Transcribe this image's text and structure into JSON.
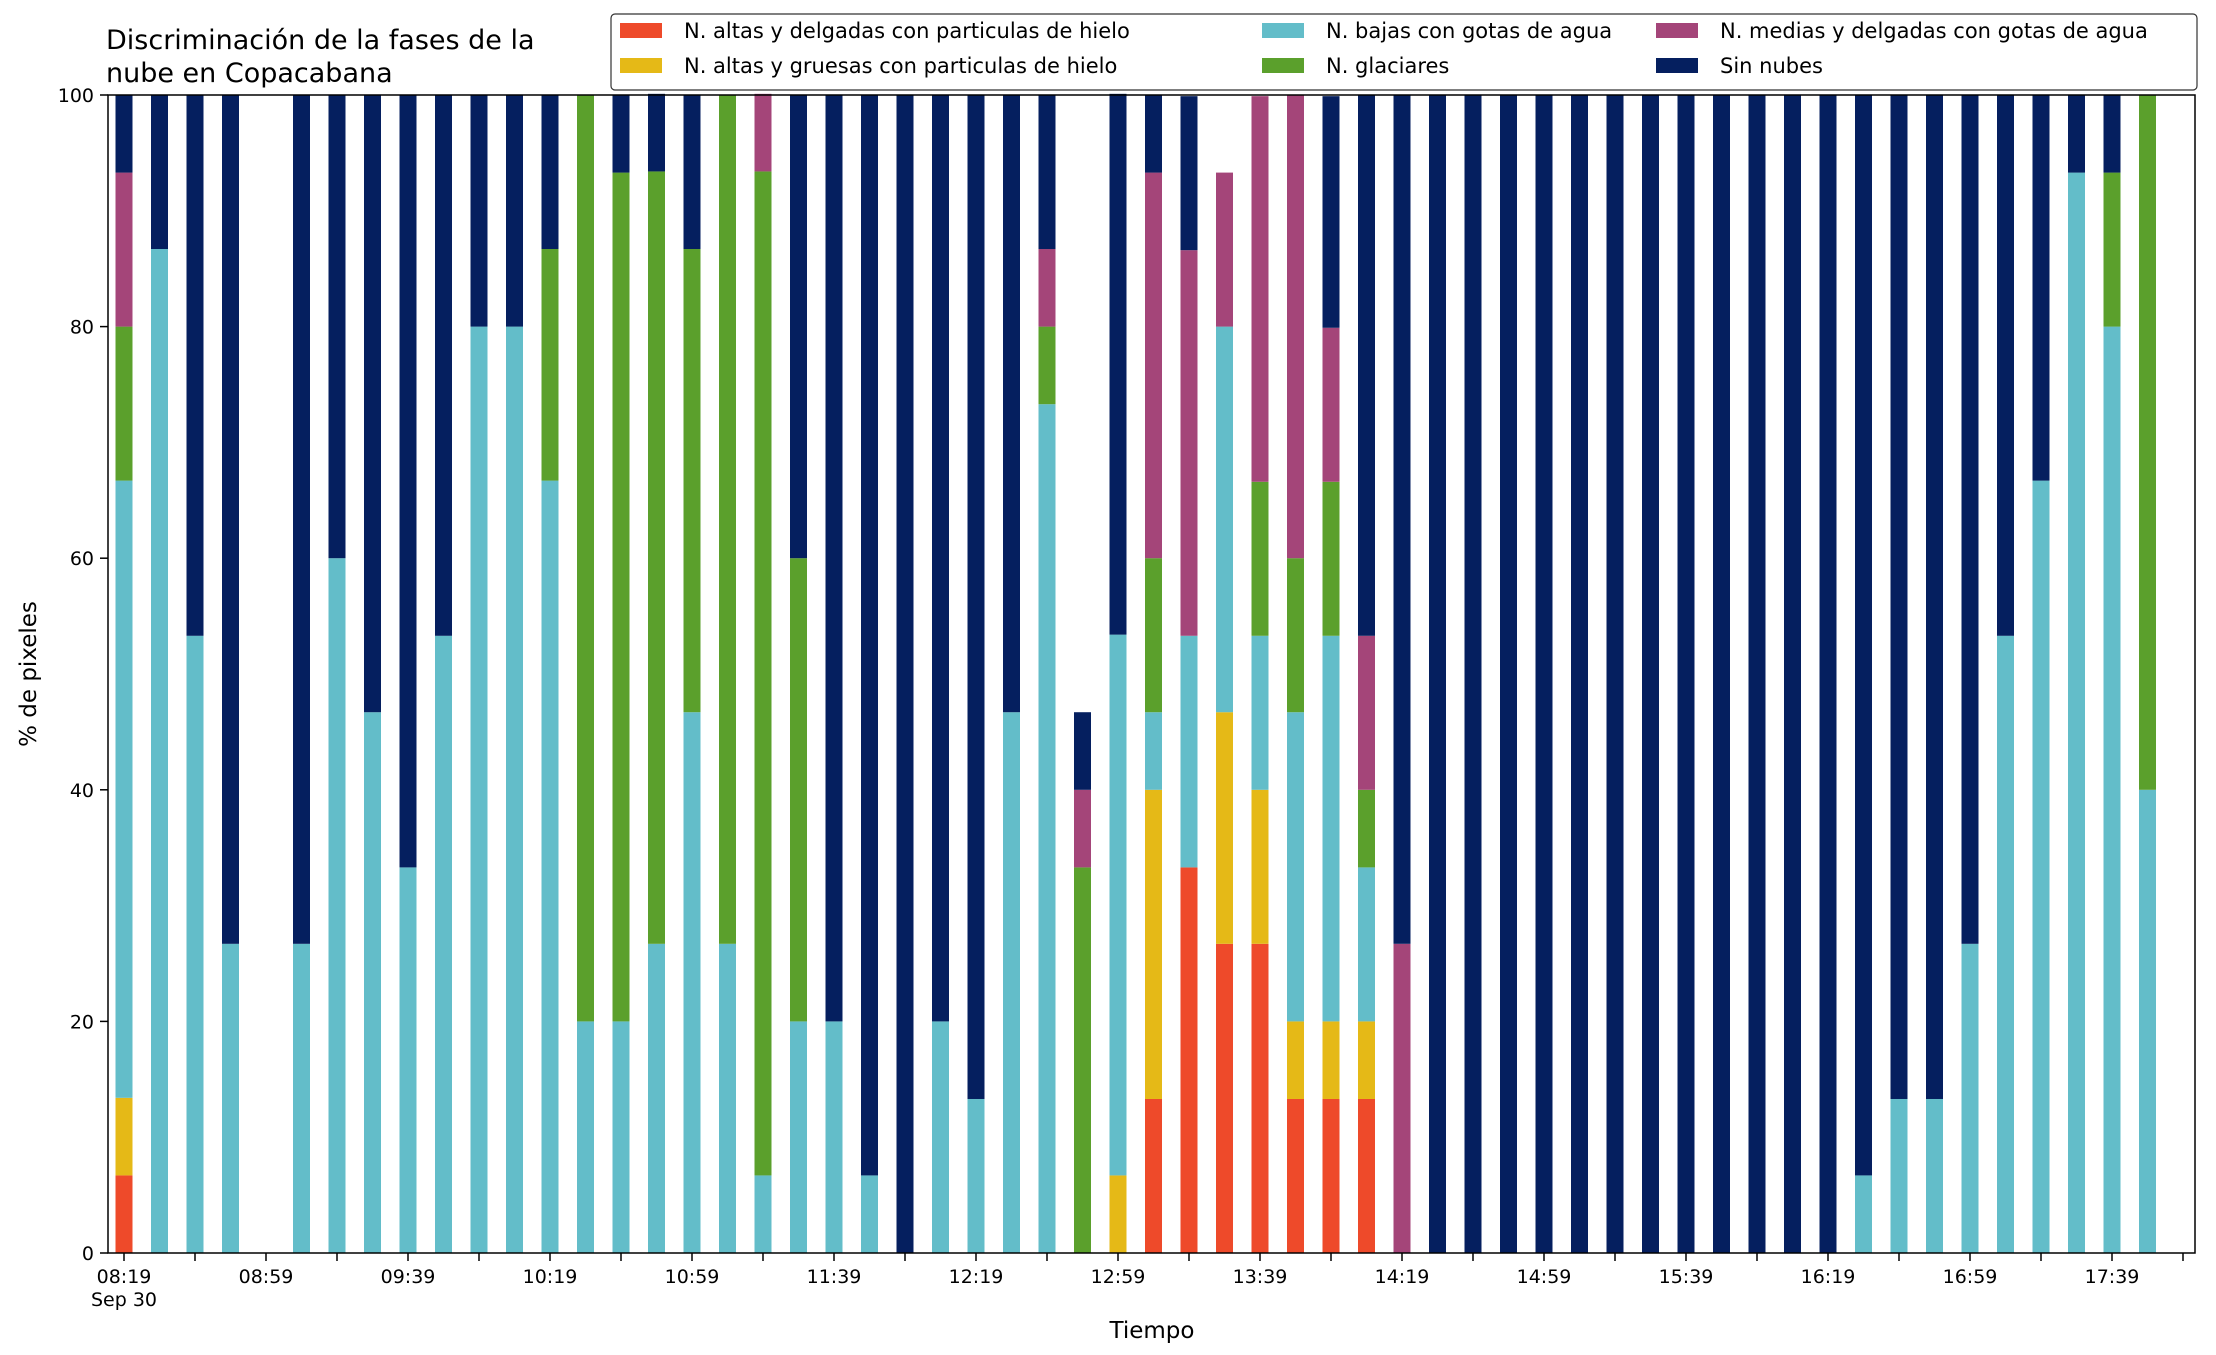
{
  "chart_data": {
    "type": "bar",
    "stacked": true,
    "title": "Discriminación de la fases de la\nnube en Copacabana",
    "xlabel": "Tiempo",
    "ylabel": "% de pixeles",
    "ylim": [
      0,
      100
    ],
    "yticks": [
      "0",
      "20",
      "40",
      "60",
      "80",
      "100"
    ],
    "grid": false,
    "legend_position": "top-right",
    "x_start": "08:19",
    "x_interval_minutes": 10,
    "x_tick_labels": [
      "08:19",
      "08:59",
      "09:39",
      "10:19",
      "10:59",
      "11:39",
      "12:19",
      "12:59",
      "13:39",
      "14:19",
      "14:59",
      "15:39",
      "16:19",
      "16:59",
      "17:39"
    ],
    "x_date_label": "Sep 30",
    "series": [
      {
        "name": "N. altas y delgadas con particulas de hielo",
        "color": "#ee4a2a",
        "values": [
          6.7,
          0,
          0,
          0,
          0,
          0,
          0,
          0,
          0,
          0,
          0,
          0,
          0,
          0,
          0,
          0,
          0,
          0,
          0,
          0,
          0,
          0,
          0,
          0,
          0,
          0,
          0,
          0,
          0,
          13.3,
          33.3,
          26.7,
          26.7,
          13.3,
          13.3,
          13.3,
          0,
          0,
          0,
          0,
          0,
          0,
          0,
          0,
          0,
          0,
          0,
          0,
          0,
          0,
          0,
          0,
          0,
          0,
          0,
          0,
          0,
          0,
          0,
          0
        ]
      },
      {
        "name": "N. altas y gruesas con particulas de hielo",
        "color": "#e5b917",
        "values": [
          6.7,
          0,
          0,
          0,
          0,
          0,
          0,
          0,
          0,
          0,
          0,
          0,
          0,
          0,
          0,
          0,
          0,
          0,
          0,
          0,
          0,
          0,
          0,
          0,
          0,
          0,
          0,
          0,
          6.7,
          26.7,
          0,
          20,
          13.3,
          6.7,
          6.7,
          6.7,
          0,
          0,
          0,
          0,
          0,
          0,
          0,
          0,
          0,
          0,
          0,
          0,
          0,
          0,
          0,
          0,
          0,
          0,
          0,
          0,
          0,
          0,
          0,
          0
        ]
      },
      {
        "name": "N. bajas con gotas de agua",
        "color": "#63bdc9",
        "values": [
          53.3,
          86.7,
          53.3,
          26.7,
          0,
          26.7,
          60,
          46.7,
          33.3,
          53.3,
          80,
          80,
          66.7,
          20,
          20,
          26.7,
          46.7,
          26.7,
          6.7,
          20,
          20,
          6.7,
          0,
          20,
          13.3,
          46.7,
          73.3,
          0,
          46.7,
          6.7,
          20,
          33.3,
          13.3,
          26.7,
          33.3,
          13.3,
          0,
          0,
          0,
          0,
          0,
          0,
          0,
          0,
          0,
          0,
          0,
          0,
          0,
          6.7,
          13.3,
          13.3,
          26.7,
          53.3,
          66.7,
          93.3,
          80,
          40,
          0,
          0
        ]
      },
      {
        "name": "N. glaciares",
        "color": "#5ba02c",
        "values": [
          13.3,
          0,
          0,
          0,
          0,
          0,
          0,
          0,
          0,
          0,
          0,
          0,
          20,
          80,
          73.3,
          66.7,
          40,
          73.3,
          86.7,
          40,
          0,
          0,
          0,
          0,
          0,
          0,
          6.7,
          33.3,
          0,
          13.3,
          0,
          0,
          13.3,
          13.3,
          13.3,
          6.7,
          0,
          0,
          0,
          0,
          0,
          0,
          0,
          0,
          0,
          0,
          0,
          0,
          0,
          0,
          0,
          0,
          0,
          0,
          0,
          0,
          13.3,
          60,
          0,
          0
        ]
      },
      {
        "name": "N. medias y delgadas con gotas de agua",
        "color": "#a44579",
        "values": [
          13.3,
          0,
          0,
          0,
          0,
          0,
          0,
          0,
          0,
          0,
          0,
          0,
          0,
          0,
          0,
          0,
          0,
          0,
          6.7,
          0,
          0,
          0,
          0,
          0,
          0,
          0,
          6.7,
          6.7,
          0,
          33.3,
          33.3,
          13.3,
          33.3,
          40,
          13.3,
          13.3,
          26.7,
          0,
          0,
          0,
          0,
          0,
          0,
          0,
          0,
          0,
          0,
          0,
          0,
          0,
          0,
          0,
          0,
          0,
          0,
          0,
          0,
          0,
          0,
          0
        ]
      },
      {
        "name": "Sin nubes",
        "color": "#051f5f",
        "values": [
          6.7,
          13.3,
          46.7,
          73.3,
          0,
          73.3,
          40,
          53.3,
          66.7,
          46.7,
          20,
          20,
          13.3,
          0,
          6.7,
          6.7,
          13.3,
          0,
          0,
          40,
          80,
          93.3,
          100,
          80,
          86.7,
          53.3,
          13.3,
          6.7,
          46.7,
          6.7,
          13.3,
          0,
          0,
          0,
          20,
          46.7,
          73.3,
          100,
          100,
          100,
          100,
          100,
          100,
          100,
          100,
          100,
          100,
          100,
          100,
          93.3,
          86.7,
          86.7,
          73.3,
          46.7,
          33.3,
          6.7,
          6.7,
          0,
          0,
          0
        ]
      }
    ]
  }
}
